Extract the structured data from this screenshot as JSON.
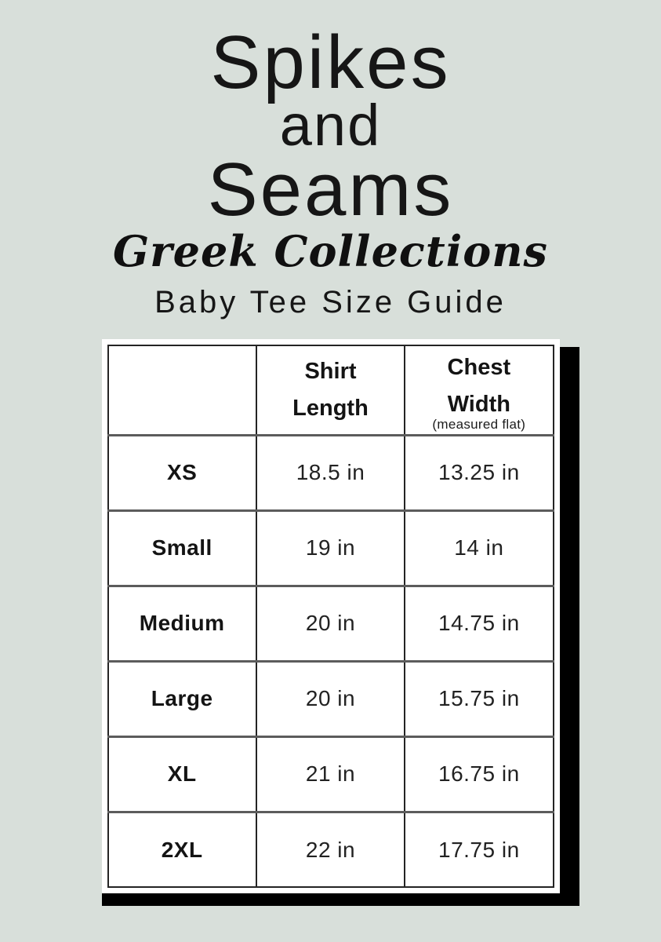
{
  "page": {
    "background_color": "#d8dfda",
    "ink_color": "#151515",
    "panel_color": "#ffffff",
    "shadow_color": "#000000"
  },
  "brand": {
    "word1": "Spikes",
    "word2": "and",
    "word3": "Seams",
    "collection": "Greek Collections"
  },
  "page_title": "Baby Tee Size Guide",
  "table": {
    "columns": [
      {
        "label": ""
      },
      {
        "label": "Shirt\nLength"
      },
      {
        "label": "Chest\nWidth",
        "note": "(measured flat)"
      }
    ],
    "rows": [
      {
        "size": "XS",
        "shirt_length": "18.5 in",
        "chest_width": "13.25 in"
      },
      {
        "size": "Small",
        "shirt_length": "19 in",
        "chest_width": "14 in"
      },
      {
        "size": "Medium",
        "shirt_length": "20 in",
        "chest_width": "14.75 in"
      },
      {
        "size": "Large",
        "shirt_length": "20 in",
        "chest_width": "15.75 in"
      },
      {
        "size": "XL",
        "shirt_length": "21 in",
        "chest_width": "16.75 in"
      },
      {
        "size": "2XL",
        "shirt_length": "22 in",
        "chest_width": "17.75 in"
      }
    ]
  }
}
